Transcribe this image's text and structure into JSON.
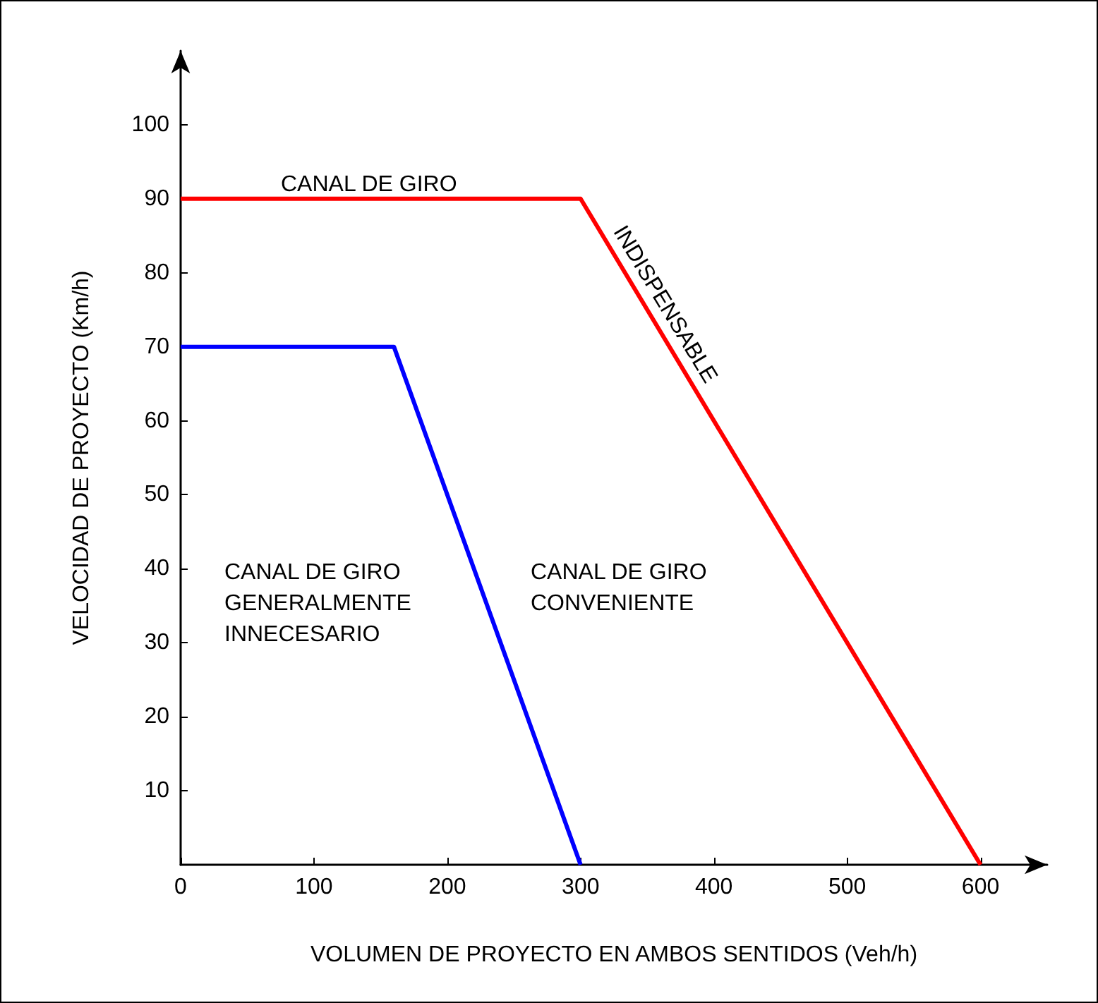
{
  "chart_data": {
    "type": "line",
    "xlabel": "VOLUMEN DE PROYECTO EN AMBOS SENTIDOS (Veh/h)",
    "ylabel": "VELOCIDAD DE PROYECTO (Km/h)",
    "series": [
      {
        "color": "#ff0000",
        "x": [
          0,
          300,
          600
        ],
        "values": [
          90,
          90,
          0
        ]
      },
      {
        "color": "#0000ff",
        "x": [
          0,
          160,
          300
        ],
        "values": [
          70,
          70,
          0
        ]
      }
    ],
    "xlim": [
      0,
      650
    ],
    "xticks": [
      0,
      100,
      200,
      300,
      400,
      500,
      600
    ],
    "ylim": [
      0,
      110
    ],
    "yticks": [
      10,
      20,
      30,
      40,
      50,
      60,
      70,
      80,
      90,
      100
    ],
    "grid": false,
    "marker": "none",
    "line_style": "solid",
    "annotations": [
      "CANAL DE GIRO",
      "INDISPENSABLE",
      "CANAL DE GIRO\nGENERALMENTE\nINNECESARIO",
      "CANAL DE GIRO\nCONVENIENTE"
    ]
  }
}
